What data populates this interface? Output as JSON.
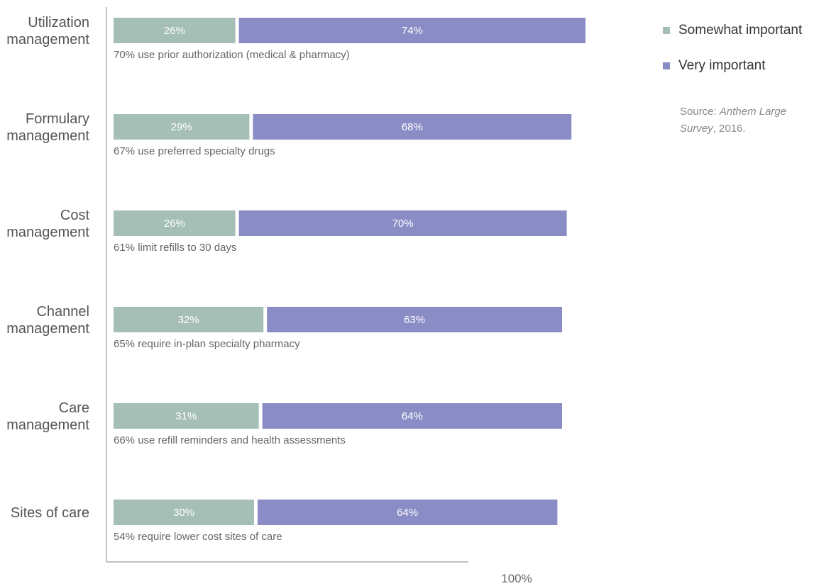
{
  "chart_data": {
    "type": "bar",
    "stacked": true,
    "orientation": "horizontal",
    "categories": [
      [
        "Utilization",
        "management"
      ],
      [
        "Formulary",
        "management"
      ],
      [
        "Cost",
        "management"
      ],
      [
        "Channel",
        "management"
      ],
      [
        "Care",
        "management"
      ],
      [
        "Sites of care"
      ]
    ],
    "series": [
      {
        "name": "Somewhat important",
        "values": [
          26,
          29,
          26,
          32,
          31,
          30
        ],
        "labels": [
          "26%",
          "29%",
          "26%",
          "32%",
          "31%",
          "30%"
        ]
      },
      {
        "name": "Very important",
        "values": [
          74,
          68,
          70,
          63,
          64,
          64
        ],
        "labels": [
          "74%",
          "68%",
          "70%",
          "63%",
          "64%",
          "64%"
        ]
      }
    ],
    "annotations": [
      "70% use prior authorization (medical & pharmacy)",
      "67% use preferred specialty drugs",
      "61% limit refills to 30 days",
      "65% require in-plan specialty pharmacy",
      "66% use refill reminders and health assessments",
      "54% require lower cost sites of care"
    ],
    "xlim": [
      0,
      100
    ],
    "x_tick_label": "100%",
    "legend_position": "top-right",
    "colors": {
      "somewhat": "#a5bfb6",
      "very": "#8a8cc5",
      "axis": "#888888"
    }
  },
  "source": {
    "prefix": "Source: ",
    "title_line1": "Anthem Large",
    "title_line2": "Survey",
    "suffix": ", 2016."
  }
}
